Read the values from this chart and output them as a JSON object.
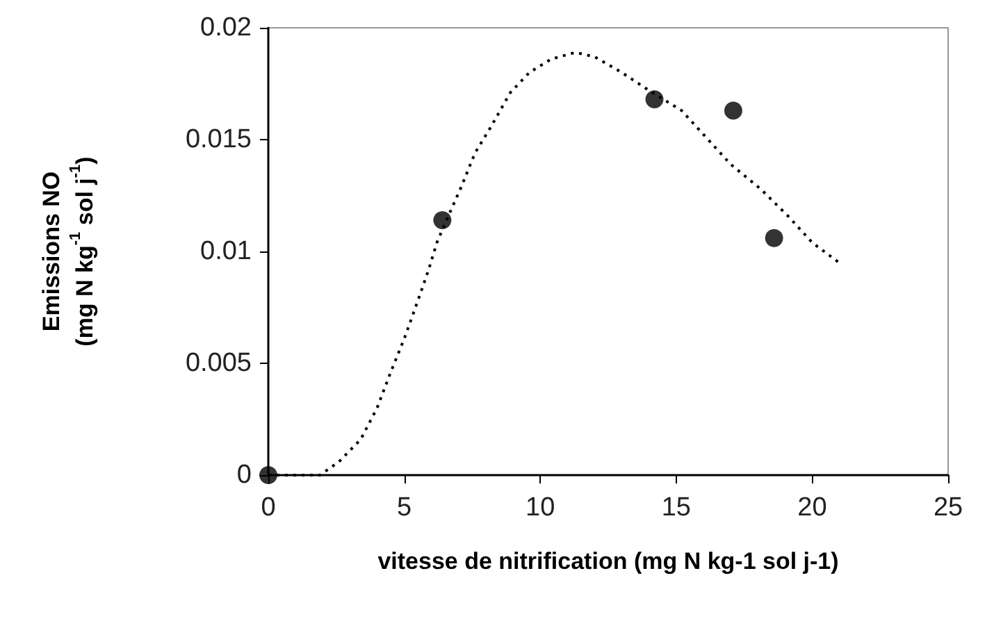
{
  "chart_data": {
    "type": "scatter",
    "xlabel": "vitesse de nitrification (mg N kg-1 sol j-1)",
    "ylabel": "Emissions NO\n(mg N kg$^{-1}$ sol j$^{-1}$)",
    "xlim": [
      0,
      25
    ],
    "xticks": [
      0,
      5,
      10,
      15,
      20,
      25
    ],
    "ylim": [
      0,
      0.02
    ],
    "yticks": [
      0,
      0.005,
      0.01,
      0.015,
      0.02
    ],
    "grid": false,
    "series": [
      {
        "color": "#000000",
        "marker": "circle",
        "x": [
          0,
          6.4,
          14.2,
          17.1,
          18.6
        ],
        "values": [
          0,
          0.0114,
          0.0168,
          0.0163,
          0.0106
        ]
      },
      {
        "type": "line",
        "color": "#000000",
        "marker": "none",
        "line_style": "dotted",
        "x": [
          0,
          1.9,
          2.6,
          3.4,
          4.0,
          4.5,
          5.0,
          5.5,
          5.9,
          6.2,
          6.7,
          7.1,
          7.6,
          8.2,
          8.9,
          9.6,
          10.4,
          11.3,
          12.0,
          13.0,
          14.0,
          15.2,
          16.1,
          17.0,
          18.1,
          19.1,
          20.0,
          21.1
        ],
        "values": [
          0,
          0,
          0.0006,
          0.0016,
          0.003,
          0.0046,
          0.0061,
          0.0078,
          0.0092,
          0.0104,
          0.0118,
          0.0129,
          0.0144,
          0.0156,
          0.0171,
          0.018,
          0.0186,
          0.0189,
          0.0187,
          0.018,
          0.0172,
          0.0163,
          0.0151,
          0.0139,
          0.0128,
          0.0116,
          0.0104,
          0.0094
        ]
      }
    ]
  }
}
